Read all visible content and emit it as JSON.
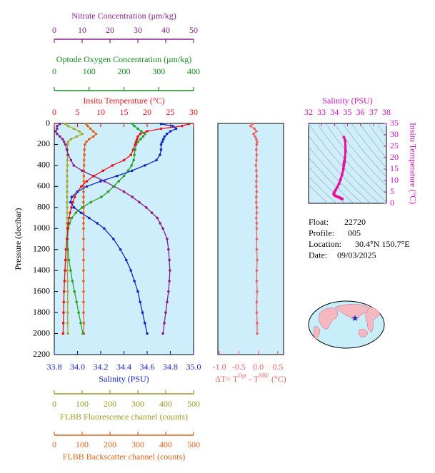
{
  "chart_data": [
    {
      "type": "profile",
      "y_label": "Pressure (decibar)",
      "ylim": [
        2200,
        0
      ],
      "yticks": [
        0,
        200,
        400,
        600,
        800,
        1000,
        1200,
        1400,
        1600,
        1800,
        2000,
        2200
      ],
      "pressure": [
        5,
        25,
        50,
        75,
        100,
        125,
        150,
        175,
        200,
        250,
        300,
        350,
        400,
        450,
        500,
        550,
        600,
        650,
        700,
        750,
        800,
        850,
        900,
        950,
        1000,
        1100,
        1200,
        1300,
        1400,
        1500,
        1600,
        1700,
        1800,
        1900,
        2000
      ],
      "x_axes": [
        {
          "label": "Nitrate Concentration (μm/kg)",
          "color": "#8b1f8b",
          "xlim": [
            0,
            50
          ],
          "xticks": [
            0,
            10,
            20,
            30,
            40,
            50
          ]
        },
        {
          "label": "Optode Oxygen Concentration (μm/kg)",
          "color": "#138a1e",
          "xlim": [
            0,
            400
          ],
          "xticks": [
            0,
            100,
            200,
            300,
            400
          ]
        },
        {
          "label": "Insitu Temperature (°C)",
          "color": "#e8141a",
          "xlim": [
            0,
            30
          ],
          "xticks": [
            0,
            5,
            10,
            15,
            20,
            25,
            30
          ]
        },
        {
          "label": "Salinity (PSU)",
          "color": "#1426c8",
          "xlim": [
            33.8,
            35.0
          ],
          "xticks": [
            33.8,
            {
              "value": 34.0,
              "label": "34.0"
            },
            34.2,
            34.4,
            34.6,
            34.8,
            {
              "value": 35.0,
              "label": "35.0"
            }
          ]
        },
        {
          "label": "FLBB Fluorescence channel (counts)",
          "color": "#9a9a2a",
          "xlim": [
            0,
            500
          ],
          "xticks": [
            0,
            100,
            200,
            300,
            400,
            500
          ]
        },
        {
          "label": "FLBB Backscatter channel (counts)",
          "color": "#e0641e",
          "xlim": [
            0,
            500
          ],
          "xticks": [
            0,
            100,
            200,
            300,
            400,
            500
          ]
        }
      ],
      "series": [
        {
          "axis": 4,
          "color": "#a8a830",
          "values": [
            40,
            50,
            70,
            90,
            100,
            80,
            60,
            50,
            48,
            47,
            47,
            47,
            47,
            46,
            46,
            46,
            46,
            46,
            46,
            46,
            46,
            46,
            46,
            46,
            46,
            46,
            47,
            47,
            47,
            48,
            48,
            48,
            48,
            48,
            49
          ]
        },
        {
          "axis": 5,
          "color": "#e0641e",
          "values": [
            115,
            120,
            130,
            140,
            150,
            140,
            125,
            115,
            110,
            108,
            108,
            107,
            107,
            106,
            106,
            106,
            105,
            105,
            105,
            105,
            105,
            105,
            105,
            105,
            105,
            105,
            105,
            105,
            105,
            105,
            105,
            105,
            105,
            106,
            106
          ]
        },
        {
          "axis": 0,
          "color": "#8b1f8b",
          "values": [
            2,
            1,
            1,
            0.5,
            1,
            2,
            3,
            3.5,
            4,
            4.5,
            5,
            6,
            7,
            10,
            14,
            18,
            21.5,
            25,
            28,
            30.5,
            33,
            35,
            37,
            38,
            39,
            40.5,
            41,
            41.3,
            41.5,
            41.3,
            41,
            40.5,
            40,
            39.5,
            39
          ]
        },
        {
          "axis": 1,
          "color": "#2aa02a",
          "values": [
            225,
            230,
            240,
            250,
            260,
            255,
            248,
            240,
            235,
            232,
            230,
            228,
            222,
            212,
            200,
            185,
            170,
            155,
            135,
            105,
            80,
            62,
            50,
            44,
            40,
            38,
            39,
            42,
            47,
            52,
            58,
            64,
            70,
            76,
            82
          ]
        },
        {
          "axis": 2,
          "color": "#e8141a",
          "values": [
            29.0,
            27.5,
            23.0,
            20.0,
            18.5,
            18.0,
            17.8,
            17.6,
            17.4,
            17.0,
            16.5,
            15.0,
            12.5,
            10.5,
            8.5,
            7.0,
            5.8,
            5.0,
            4.4,
            4.0,
            3.7,
            3.4,
            3.2,
            3.0,
            2.9,
            2.7,
            2.5,
            2.4,
            2.3,
            2.2,
            2.1,
            2.05,
            2.0,
            1.95,
            1.9
          ]
        },
        {
          "axis": 3,
          "color": "#1426c8",
          "values": [
            34.72,
            34.82,
            34.85,
            34.8,
            34.77,
            34.75,
            34.74,
            34.73,
            34.72,
            34.72,
            34.71,
            34.68,
            34.58,
            34.47,
            34.34,
            34.2,
            34.08,
            34.0,
            33.95,
            33.94,
            33.97,
            34.03,
            34.1,
            34.17,
            34.23,
            34.31,
            34.37,
            34.42,
            34.46,
            34.49,
            34.52,
            34.54,
            34.56,
            34.58,
            34.6
          ]
        }
      ]
    },
    {
      "type": "delta",
      "color": "#f06060",
      "label_parts": [
        "ΔT= T",
        "Opt",
        " - T",
        "SBE",
        " (°C)"
      ],
      "xlim": [
        -1.04,
        0.65
      ],
      "xticks": [
        {
          "value": -1.0,
          "label": "-1.0"
        },
        {
          "value": -0.5,
          "label": "-0.5"
        },
        {
          "value": 0.0,
          "label": "0.0"
        },
        0.5
      ],
      "ylim": [
        2200,
        0
      ],
      "pressure": [
        5,
        25,
        50,
        75,
        100,
        125,
        150,
        175,
        200,
        250,
        300,
        350,
        400,
        450,
        500,
        550,
        600,
        650,
        700,
        750,
        800,
        850,
        900,
        950,
        1000,
        1100,
        1200,
        1300,
        1400,
        1500,
        1600,
        1700,
        1800,
        1900,
        2000
      ],
      "values": [
        -0.15,
        -0.2,
        -0.1,
        -0.05,
        -0.12,
        -0.08,
        -0.05,
        -0.03,
        -0.04,
        -0.05,
        -0.04,
        -0.05,
        -0.06,
        -0.05,
        -0.04,
        -0.05,
        -0.05,
        -0.04,
        -0.05,
        -0.05,
        -0.04,
        -0.04,
        -0.05,
        -0.04,
        -0.04,
        -0.04,
        -0.04,
        -0.03,
        -0.04,
        -0.04,
        -0.03,
        -0.04,
        -0.04,
        -0.03,
        -0.03
      ]
    },
    {
      "type": "ts",
      "color": "#e8109a",
      "x_label": "Salinity (PSU)",
      "y_label": "Insitu Temperature (°C)",
      "axis_color": "#d010c0",
      "xlim": [
        32,
        38
      ],
      "xticks": [
        32,
        33,
        34,
        35,
        36,
        37,
        38
      ],
      "ylim": [
        0,
        35
      ],
      "yticks": [
        0,
        5,
        10,
        15,
        20,
        25,
        30,
        35
      ],
      "x": [
        34.72,
        34.82,
        34.85,
        34.8,
        34.77,
        34.75,
        34.74,
        34.73,
        34.72,
        34.72,
        34.71,
        34.68,
        34.58,
        34.47,
        34.34,
        34.2,
        34.08,
        34.0,
        33.95,
        33.94,
        33.97,
        34.03,
        34.1,
        34.17,
        34.23,
        34.31,
        34.37,
        34.42,
        34.46,
        34.49,
        34.52,
        34.54,
        34.56,
        34.58,
        34.6
      ],
      "values": [
        29.0,
        27.5,
        23.0,
        20.0,
        18.5,
        18.0,
        17.8,
        17.6,
        17.4,
        17.0,
        16.5,
        15.0,
        12.5,
        10.5,
        8.5,
        7.0,
        5.8,
        5.0,
        4.4,
        4.0,
        3.7,
        3.4,
        3.2,
        3.0,
        2.9,
        2.7,
        2.5,
        2.4,
        2.3,
        2.2,
        2.1,
        2.05,
        2.0,
        1.95,
        1.9
      ]
    }
  ],
  "info": [
    {
      "label": "Float:",
      "value": "22720"
    },
    {
      "label": "Profile:",
      "value": "005"
    },
    {
      "label": "Location:",
      "value": "30.4°N  150.7°E"
    },
    {
      "label": "Date:",
      "value": "09/03/2025"
    }
  ]
}
